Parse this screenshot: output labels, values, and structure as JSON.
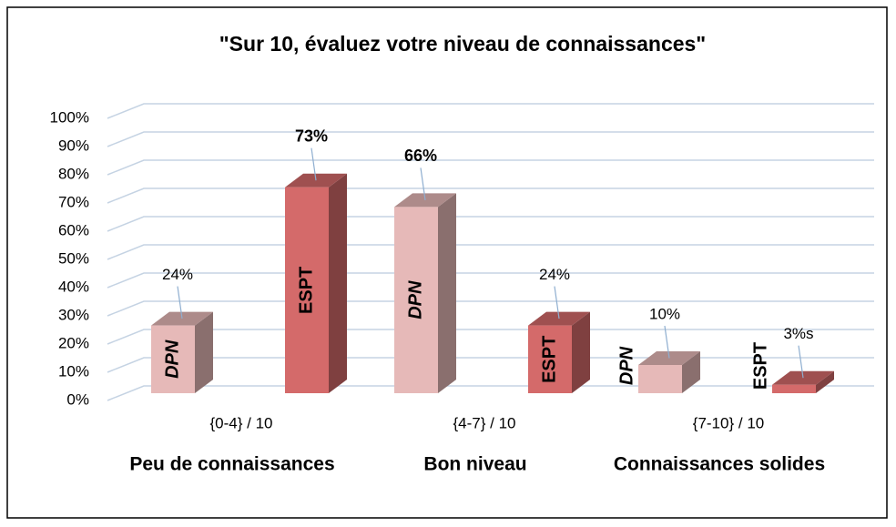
{
  "chart_data": {
    "type": "bar3d",
    "title": "\"Sur 10, évaluez votre niveau de connaissances\"",
    "categories": [
      "{0-4} / 10",
      "{4-7} / 10",
      "{7-10} / 10"
    ],
    "group_labels": [
      "Peu de connaissances",
      "Bon niveau",
      "Connaissances solides"
    ],
    "series": [
      {
        "name": "DPN",
        "color": "#e6b9b8",
        "italic": true,
        "values": [
          24,
          66,
          10
        ],
        "value_labels": [
          "24%",
          "66%",
          "10%"
        ],
        "label_bold": [
          false,
          true,
          false
        ]
      },
      {
        "name": "ESPT",
        "color": "#d46a6a",
        "italic": false,
        "values": [
          73,
          24,
          3
        ],
        "value_labels": [
          "73%",
          "24%",
          "3%s"
        ],
        "label_bold": [
          true,
          false,
          false
        ]
      }
    ],
    "ylim": [
      0,
      100
    ],
    "yticks": [
      {
        "value": 0,
        "label": "0%"
      },
      {
        "value": 10,
        "label": "10%"
      },
      {
        "value": 20,
        "label": "20%"
      },
      {
        "value": 30,
        "label": "30%"
      },
      {
        "value": 40,
        "label": "40%"
      },
      {
        "value": 50,
        "label": "50%"
      },
      {
        "value": 60,
        "label": "60%"
      },
      {
        "value": 70,
        "label": "70%"
      },
      {
        "value": 80,
        "label": "80%"
      },
      {
        "value": 90,
        "label": "90%"
      },
      {
        "value": 100,
        "label": "100%"
      }
    ],
    "grid": true
  }
}
